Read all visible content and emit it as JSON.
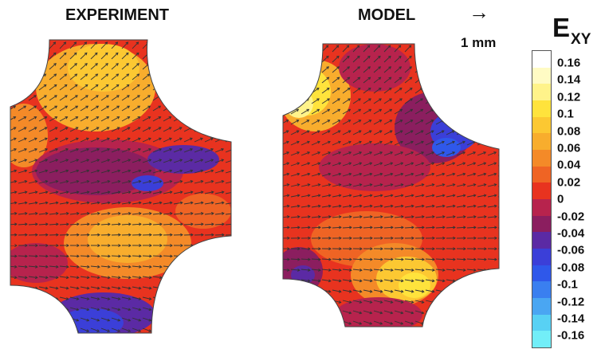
{
  "panels": {
    "experiment_title": "EXPERIMENT",
    "model_title": "MODEL"
  },
  "scale_bar": {
    "arrow": "→",
    "label": "1 mm"
  },
  "colorbar": {
    "title_main": "E",
    "title_sub": "XY",
    "ticks": [
      "0.16",
      "0.14",
      "0.12",
      "0.1",
      "0.08",
      "0.06",
      "0.04",
      "0.02",
      "0",
      "-0.02",
      "-0.04",
      "-0.06",
      "-0.08",
      "-0.1",
      "-0.12",
      "-0.14",
      "-0.16"
    ],
    "colors": [
      "#ffffff",
      "#fffbc4",
      "#fff38a",
      "#ffe33c",
      "#fcc832",
      "#f8ad2d",
      "#f48a28",
      "#ef6424",
      "#e8331f",
      "#b7234d",
      "#8b1e5f",
      "#5b2aa4",
      "#3b3fd8",
      "#2f58ea",
      "#3a7ff0",
      "#4aa6f2",
      "#58d1f4",
      "#72eef8"
    ]
  },
  "colors": {
    "red": "#e8331f",
    "orange": "#f48a28",
    "yellow": "#ffe33c",
    "purple": "#8b1e5f",
    "blue": "#3b3fd8",
    "arrow": "#333333"
  }
}
